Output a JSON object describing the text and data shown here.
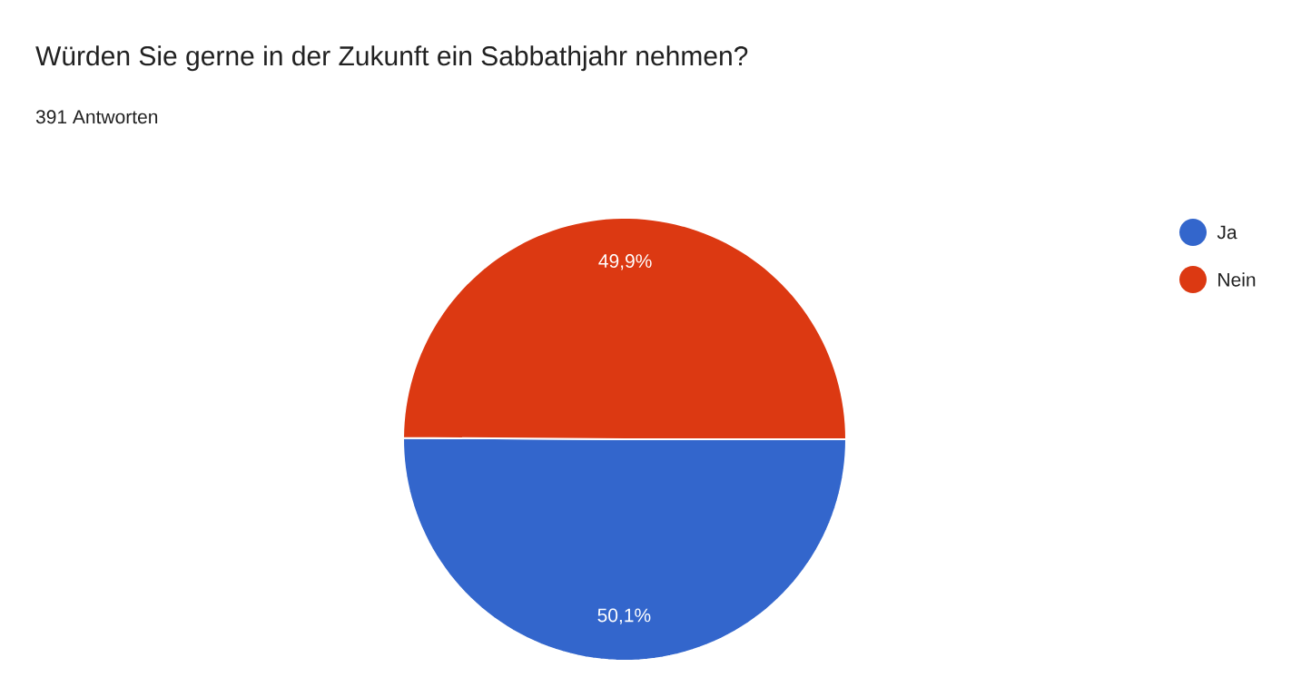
{
  "chart_data": {
    "type": "pie",
    "title": "Würden Sie gerne in der Zukunft ein Sabbathjahr nehmen?",
    "subtitle": "391 Antworten",
    "categories": [
      "Ja",
      "Nein"
    ],
    "values": [
      50.1,
      49.9
    ],
    "colors": [
      "#3366cc",
      "#dc3912"
    ],
    "value_labels": [
      "50,1%",
      "49,9%"
    ],
    "legend": "top right"
  }
}
